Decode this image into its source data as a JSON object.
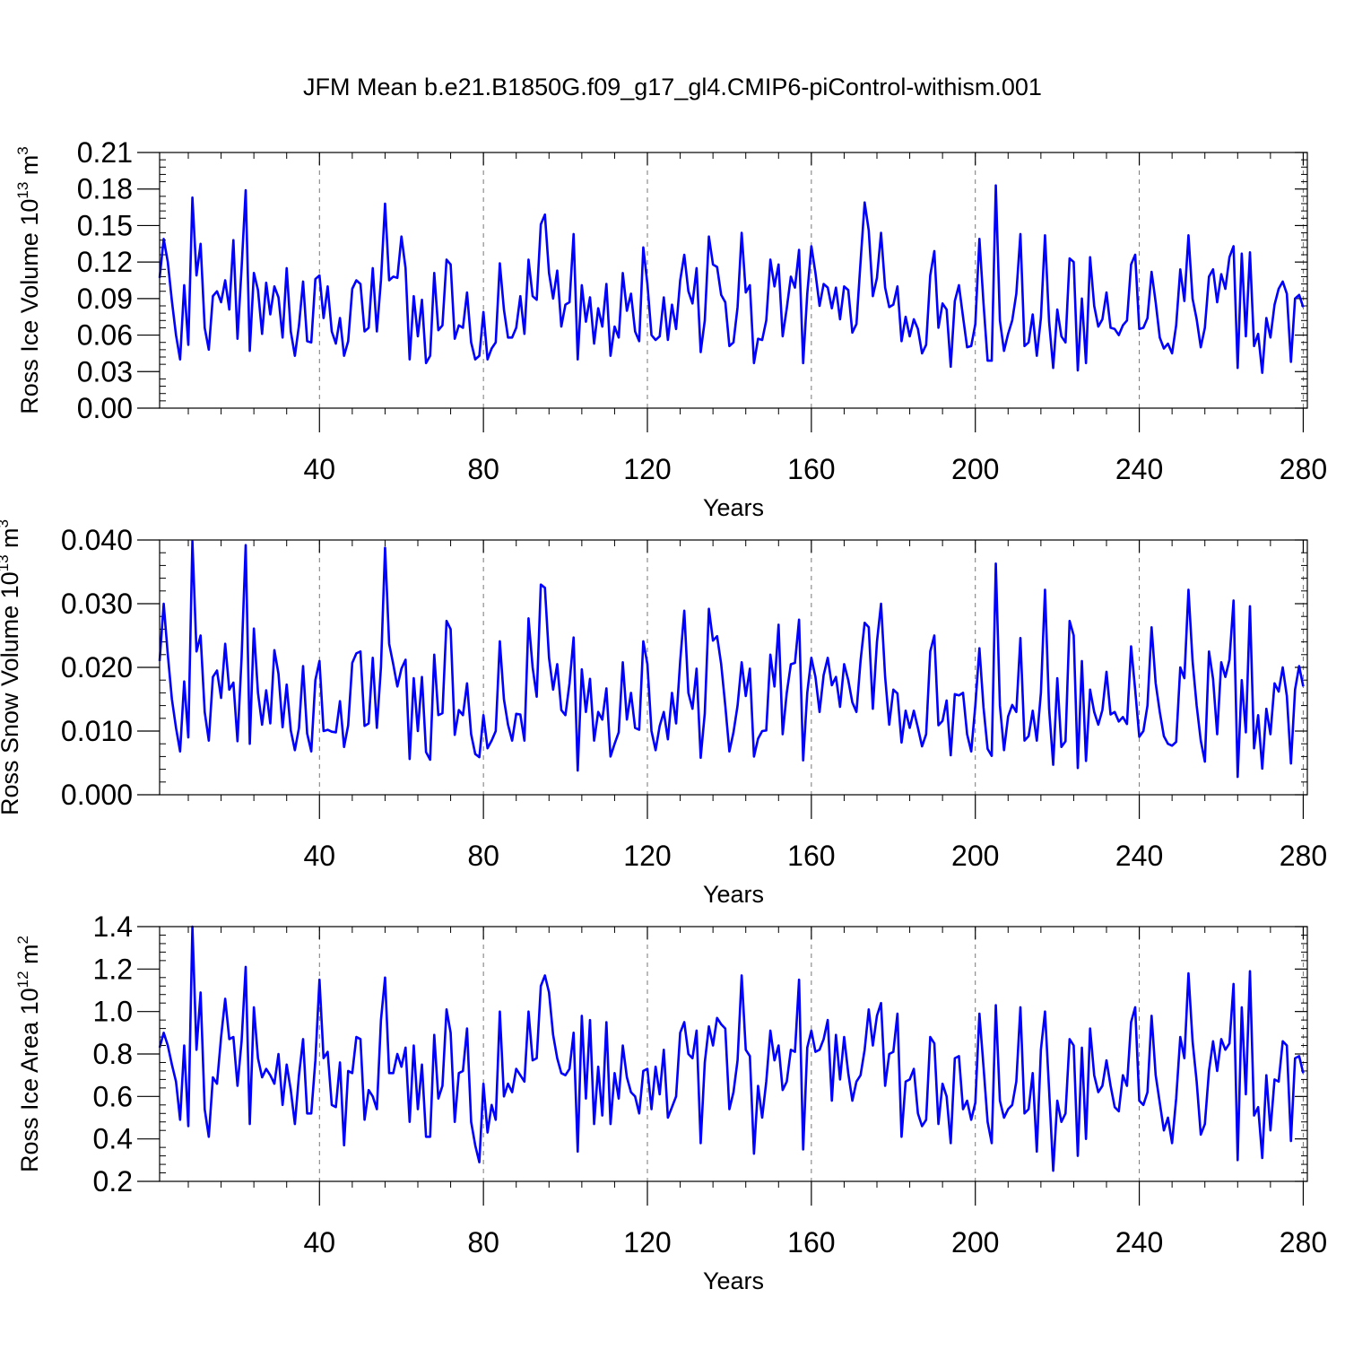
{
  "title": "JFM Mean b.e21.B1850G.f09_g17_gl4.CMIP6-piControl-withism.001",
  "colors": {
    "series": "#0000ff",
    "axes": "#000000",
    "grid": "#777777"
  },
  "chart_data": [
    {
      "type": "line",
      "ylabel": {
        "main": "Ross Ice Volume 10",
        "exp": "13",
        "unit": " m",
        "unit_exp": "3"
      },
      "xlabel": "Years",
      "xlim": [
        1,
        281
      ],
      "ylim": [
        0.0,
        0.21
      ],
      "xticks": [
        40,
        80,
        120,
        160,
        200,
        240,
        280
      ],
      "xtick_labels": [
        "40",
        "80",
        "120",
        "160",
        "200",
        "240",
        "280"
      ],
      "yticks": [
        0.0,
        0.03,
        0.06,
        0.09,
        0.12,
        0.15,
        0.18,
        0.21
      ],
      "ytick_labels": [
        "0.00",
        "0.03",
        "0.06",
        "0.09",
        "0.12",
        "0.15",
        "0.18",
        "0.21"
      ],
      "grid": "vertical dashed at major x ticks",
      "x_start": 1,
      "values": [
        0.107,
        0.139,
        0.12,
        0.088,
        0.06,
        0.04,
        0.101,
        0.052,
        0.173,
        0.109,
        0.135,
        0.066,
        0.048,
        0.092,
        0.096,
        0.087,
        0.105,
        0.081,
        0.138,
        0.057,
        0.115,
        0.179,
        0.047,
        0.111,
        0.097,
        0.061,
        0.103,
        0.077,
        0.1,
        0.091,
        0.058,
        0.115,
        0.063,
        0.043,
        0.068,
        0.104,
        0.055,
        0.054,
        0.106,
        0.109,
        0.074,
        0.1,
        0.063,
        0.053,
        0.074,
        0.043,
        0.055,
        0.098,
        0.105,
        0.102,
        0.063,
        0.066,
        0.115,
        0.063,
        0.105,
        0.168,
        0.105,
        0.108,
        0.107,
        0.141,
        0.115,
        0.04,
        0.092,
        0.059,
        0.089,
        0.037,
        0.043,
        0.111,
        0.064,
        0.068,
        0.122,
        0.118,
        0.057,
        0.068,
        0.066,
        0.095,
        0.054,
        0.04,
        0.043,
        0.079,
        0.04,
        0.049,
        0.054,
        0.119,
        0.081,
        0.058,
        0.058,
        0.066,
        0.092,
        0.061,
        0.122,
        0.092,
        0.089,
        0.151,
        0.159,
        0.111,
        0.09,
        0.113,
        0.067,
        0.085,
        0.087,
        0.143,
        0.04,
        0.101,
        0.071,
        0.091,
        0.053,
        0.082,
        0.067,
        0.102,
        0.043,
        0.067,
        0.058,
        0.111,
        0.08,
        0.094,
        0.063,
        0.055,
        0.132,
        0.102,
        0.06,
        0.056,
        0.059,
        0.091,
        0.056,
        0.085,
        0.065,
        0.105,
        0.126,
        0.096,
        0.086,
        0.115,
        0.046,
        0.072,
        0.141,
        0.118,
        0.116,
        0.093,
        0.087,
        0.051,
        0.054,
        0.083,
        0.144,
        0.095,
        0.101,
        0.037,
        0.057,
        0.056,
        0.072,
        0.122,
        0.1,
        0.118,
        0.059,
        0.082,
        0.108,
        0.099,
        0.13,
        0.037,
        0.094,
        0.133,
        0.111,
        0.084,
        0.102,
        0.099,
        0.082,
        0.099,
        0.073,
        0.1,
        0.097,
        0.062,
        0.069,
        0.12,
        0.169,
        0.146,
        0.092,
        0.107,
        0.144,
        0.099,
        0.083,
        0.085,
        0.1,
        0.055,
        0.075,
        0.059,
        0.073,
        0.065,
        0.045,
        0.052,
        0.109,
        0.129,
        0.066,
        0.086,
        0.081,
        0.034,
        0.088,
        0.101,
        0.075,
        0.05,
        0.051,
        0.069,
        0.139,
        0.086,
        0.039,
        0.039,
        0.183,
        0.072,
        0.047,
        0.061,
        0.072,
        0.094,
        0.143,
        0.051,
        0.054,
        0.077,
        0.043,
        0.074,
        0.142,
        0.071,
        0.033,
        0.081,
        0.059,
        0.054,
        0.123,
        0.12,
        0.031,
        0.09,
        0.037,
        0.124,
        0.084,
        0.067,
        0.073,
        0.095,
        0.066,
        0.065,
        0.06,
        0.068,
        0.072,
        0.118,
        0.126,
        0.065,
        0.066,
        0.074,
        0.112,
        0.087,
        0.058,
        0.049,
        0.053,
        0.045,
        0.068,
        0.114,
        0.088,
        0.142,
        0.09,
        0.073,
        0.05,
        0.066,
        0.108,
        0.114,
        0.087,
        0.11,
        0.098,
        0.124,
        0.133,
        0.033,
        0.127,
        0.059,
        0.128,
        0.051,
        0.061,
        0.029,
        0.074,
        0.058,
        0.085,
        0.098,
        0.104,
        0.094,
        0.038,
        0.09,
        0.093,
        0.083
      ]
    },
    {
      "type": "line",
      "ylabel": {
        "main": "Ross Snow Volume 10",
        "exp": "13",
        "unit": " m",
        "unit_exp": "3"
      },
      "xlabel": "Years",
      "xlim": [
        1,
        281
      ],
      "ylim": [
        0.0,
        0.04
      ],
      "xticks": [
        40,
        80,
        120,
        160,
        200,
        240,
        280
      ],
      "xtick_labels": [
        "40",
        "80",
        "120",
        "160",
        "200",
        "240",
        "280"
      ],
      "yticks": [
        0.0,
        0.01,
        0.02,
        0.03,
        0.04
      ],
      "ytick_labels": [
        "0.000",
        "0.010",
        "0.020",
        "0.030",
        "0.040"
      ],
      "grid": "vertical dashed at major x ticks",
      "x_start": 1,
      "values": [
        0.021,
        0.03,
        0.022,
        0.015,
        0.0105,
        0.0068,
        0.0178,
        0.009,
        0.0398,
        0.0225,
        0.025,
        0.013,
        0.0085,
        0.0185,
        0.0195,
        0.0152,
        0.0237,
        0.0165,
        0.0176,
        0.0084,
        0.0215,
        0.0392,
        0.008,
        0.0261,
        0.016,
        0.011,
        0.0164,
        0.0112,
        0.0227,
        0.019,
        0.0106,
        0.0173,
        0.0101,
        0.007,
        0.0105,
        0.0202,
        0.0096,
        0.0068,
        0.018,
        0.021,
        0.01,
        0.0102,
        0.0099,
        0.0098,
        0.0147,
        0.0075,
        0.0109,
        0.0207,
        0.0222,
        0.0225,
        0.0108,
        0.0112,
        0.0215,
        0.0105,
        0.02,
        0.0388,
        0.0237,
        0.0205,
        0.017,
        0.0198,
        0.0212,
        0.0056,
        0.0183,
        0.01,
        0.0185,
        0.0067,
        0.0055,
        0.022,
        0.0125,
        0.0128,
        0.0273,
        0.026,
        0.0094,
        0.0133,
        0.0125,
        0.0175,
        0.0095,
        0.0064,
        0.0059,
        0.0125,
        0.0073,
        0.0085,
        0.01,
        0.0241,
        0.015,
        0.011,
        0.0085,
        0.0127,
        0.0126,
        0.0085,
        0.0277,
        0.02,
        0.0154,
        0.033,
        0.0325,
        0.0215,
        0.0165,
        0.0205,
        0.0133,
        0.0125,
        0.0175,
        0.0247,
        0.0038,
        0.0197,
        0.013,
        0.0182,
        0.0085,
        0.013,
        0.0118,
        0.0167,
        0.006,
        0.008,
        0.0098,
        0.0208,
        0.0118,
        0.016,
        0.0105,
        0.0102,
        0.0241,
        0.0205,
        0.01,
        0.007,
        0.0108,
        0.013,
        0.0087,
        0.016,
        0.0112,
        0.021,
        0.0289,
        0.016,
        0.0135,
        0.0198,
        0.0058,
        0.0128,
        0.0292,
        0.0242,
        0.0249,
        0.0205,
        0.014,
        0.0068,
        0.0098,
        0.014,
        0.0208,
        0.0155,
        0.0198,
        0.006,
        0.0088,
        0.01,
        0.0101,
        0.022,
        0.017,
        0.0267,
        0.0095,
        0.016,
        0.0205,
        0.0207,
        0.0275,
        0.0054,
        0.016,
        0.0215,
        0.0185,
        0.013,
        0.0188,
        0.0215,
        0.0172,
        0.0185,
        0.0138,
        0.0205,
        0.018,
        0.0145,
        0.013,
        0.021,
        0.027,
        0.0263,
        0.0135,
        0.024,
        0.03,
        0.0185,
        0.011,
        0.0165,
        0.0159,
        0.0082,
        0.0132,
        0.0105,
        0.0132,
        0.0105,
        0.0076,
        0.0095,
        0.0225,
        0.025,
        0.0109,
        0.0116,
        0.0148,
        0.0062,
        0.0158,
        0.0156,
        0.016,
        0.0095,
        0.0068,
        0.014,
        0.023,
        0.0137,
        0.0072,
        0.0061,
        0.0363,
        0.014,
        0.007,
        0.0123,
        0.0141,
        0.013,
        0.0246,
        0.0085,
        0.0092,
        0.0132,
        0.0085,
        0.016,
        0.0322,
        0.0135,
        0.0047,
        0.0183,
        0.0075,
        0.0084,
        0.0273,
        0.025,
        0.0042,
        0.021,
        0.0053,
        0.0165,
        0.013,
        0.011,
        0.0133,
        0.0193,
        0.0126,
        0.013,
        0.0115,
        0.0122,
        0.0111,
        0.0233,
        0.0165,
        0.0091,
        0.01,
        0.014,
        0.0263,
        0.0175,
        0.013,
        0.0092,
        0.008,
        0.0077,
        0.0083,
        0.02,
        0.0183,
        0.0322,
        0.021,
        0.014,
        0.0085,
        0.0052,
        0.0225,
        0.0182,
        0.0095,
        0.0208,
        0.0185,
        0.0212,
        0.0305,
        0.0028,
        0.018,
        0.0098,
        0.0296,
        0.0073,
        0.0125,
        0.0041,
        0.0135,
        0.0095,
        0.0175,
        0.0162,
        0.02,
        0.0155,
        0.0049,
        0.0165,
        0.0202,
        0.017
      ]
    },
    {
      "type": "line",
      "ylabel": {
        "main": "Ross Ice Area 10",
        "exp": "12",
        "unit": " m",
        "unit_exp": "2"
      },
      "xlabel": "Years",
      "xlim": [
        1,
        281
      ],
      "ylim": [
        0.2,
        1.4
      ],
      "xticks": [
        40,
        80,
        120,
        160,
        200,
        240,
        280
      ],
      "xtick_labels": [
        "40",
        "80",
        "120",
        "160",
        "200",
        "240",
        "280"
      ],
      "yticks": [
        0.2,
        0.4,
        0.6,
        0.8,
        1.0,
        1.2,
        1.4
      ],
      "ytick_labels": [
        "0.2",
        "0.4",
        "0.6",
        "0.8",
        "1.0",
        "1.2",
        "1.4"
      ],
      "grid": "vertical dashed at major x ticks",
      "x_start": 1,
      "values": [
        0.83,
        0.9,
        0.84,
        0.75,
        0.67,
        0.49,
        0.84,
        0.46,
        1.4,
        0.82,
        1.09,
        0.54,
        0.41,
        0.69,
        0.66,
        0.88,
        1.06,
        0.87,
        0.88,
        0.65,
        0.86,
        1.21,
        0.47,
        1.02,
        0.78,
        0.69,
        0.73,
        0.7,
        0.66,
        0.8,
        0.56,
        0.75,
        0.63,
        0.47,
        0.7,
        0.87,
        0.52,
        0.52,
        0.77,
        1.15,
        0.78,
        0.81,
        0.56,
        0.55,
        0.76,
        0.37,
        0.72,
        0.71,
        0.88,
        0.87,
        0.49,
        0.63,
        0.6,
        0.54,
        0.96,
        1.16,
        0.71,
        0.71,
        0.8,
        0.74,
        0.83,
        0.48,
        0.84,
        0.54,
        0.75,
        0.41,
        0.41,
        0.89,
        0.59,
        0.65,
        1.01,
        0.9,
        0.48,
        0.71,
        0.72,
        0.92,
        0.48,
        0.37,
        0.29,
        0.66,
        0.43,
        0.56,
        0.49,
        1.0,
        0.6,
        0.66,
        0.62,
        0.73,
        0.7,
        0.67,
        1.0,
        0.77,
        0.78,
        1.12,
        1.17,
        1.09,
        0.89,
        0.78,
        0.71,
        0.7,
        0.73,
        0.9,
        0.34,
        0.98,
        0.59,
        0.96,
        0.47,
        0.74,
        0.51,
        0.95,
        0.47,
        0.71,
        0.59,
        0.84,
        0.69,
        0.62,
        0.6,
        0.52,
        0.72,
        0.73,
        0.54,
        0.74,
        0.61,
        0.82,
        0.5,
        0.55,
        0.6,
        0.9,
        0.95,
        0.8,
        0.78,
        0.91,
        0.38,
        0.76,
        0.93,
        0.84,
        0.97,
        0.94,
        0.92,
        0.54,
        0.62,
        0.77,
        1.17,
        0.82,
        0.79,
        0.33,
        0.65,
        0.5,
        0.67,
        0.91,
        0.77,
        0.84,
        0.63,
        0.67,
        0.82,
        0.81,
        1.15,
        0.35,
        0.83,
        0.91,
        0.81,
        0.82,
        0.87,
        0.96,
        0.58,
        0.89,
        0.68,
        0.88,
        0.71,
        0.58,
        0.67,
        0.7,
        0.82,
        1.01,
        0.84,
        0.98,
        1.04,
        0.65,
        0.8,
        0.81,
        0.99,
        0.41,
        0.67,
        0.68,
        0.73,
        0.52,
        0.46,
        0.49,
        0.88,
        0.85,
        0.47,
        0.66,
        0.6,
        0.38,
        0.78,
        0.79,
        0.54,
        0.58,
        0.49,
        0.57,
        0.99,
        0.74,
        0.48,
        0.38,
        1.03,
        0.58,
        0.5,
        0.54,
        0.56,
        0.67,
        1.02,
        0.52,
        0.54,
        0.71,
        0.34,
        0.82,
        1.0,
        0.63,
        0.25,
        0.58,
        0.48,
        0.52,
        0.87,
        0.84,
        0.32,
        0.83,
        0.4,
        0.92,
        0.7,
        0.62,
        0.65,
        0.77,
        0.65,
        0.55,
        0.53,
        0.7,
        0.65,
        0.95,
        1.02,
        0.58,
        0.56,
        0.62,
        0.98,
        0.7,
        0.57,
        0.44,
        0.5,
        0.38,
        0.59,
        0.88,
        0.78,
        1.18,
        0.86,
        0.67,
        0.42,
        0.47,
        0.72,
        0.86,
        0.72,
        0.87,
        0.82,
        0.85,
        1.13,
        0.3,
        1.02,
        0.61,
        1.19,
        0.51,
        0.55,
        0.31,
        0.7,
        0.44,
        0.68,
        0.67,
        0.86,
        0.84,
        0.39,
        0.78,
        0.79,
        0.71
      ]
    }
  ]
}
